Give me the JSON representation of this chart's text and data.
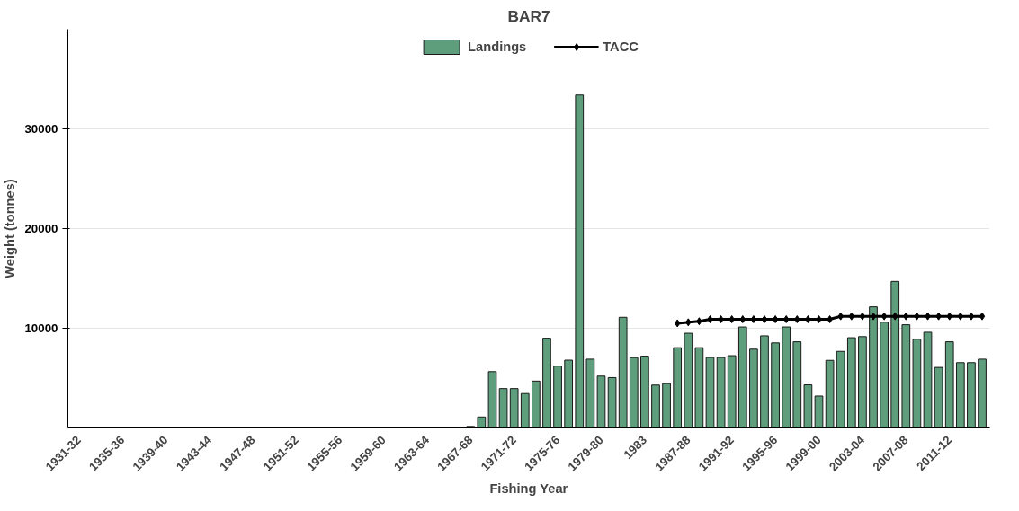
{
  "chart_data": {
    "type": "bar",
    "title": "BAR7",
    "xlabel": "Fishing Year",
    "ylabel": "Weight (tonnes)",
    "categories": [
      "1931-32",
      null,
      null,
      null,
      "1935-36",
      null,
      null,
      null,
      "1939-40",
      null,
      null,
      null,
      "1943-44",
      null,
      null,
      null,
      "1947-48",
      null,
      null,
      null,
      "1951-52",
      null,
      null,
      null,
      "1955-56",
      null,
      null,
      null,
      "1959-60",
      null,
      null,
      null,
      "1963-64",
      null,
      null,
      null,
      "1967-68",
      null,
      null,
      null,
      "1971-72",
      null,
      null,
      null,
      "1975-76",
      null,
      null,
      null,
      "1979-80",
      null,
      null,
      null,
      "1983",
      null,
      null,
      null,
      "1987-88",
      null,
      null,
      null,
      "1991-92",
      null,
      null,
      null,
      "1995-96",
      null,
      null,
      null,
      "1999-00",
      null,
      null,
      null,
      "2003-04",
      null,
      null,
      null,
      "2007-08",
      null,
      null,
      null,
      "2011-12",
      null,
      null,
      null
    ],
    "series": [
      {
        "name": "Landings",
        "color": "#5e9e7c",
        "values": [
          null,
          null,
          null,
          null,
          null,
          null,
          null,
          null,
          null,
          null,
          null,
          null,
          null,
          null,
          null,
          null,
          null,
          null,
          null,
          null,
          null,
          null,
          null,
          null,
          null,
          null,
          null,
          null,
          null,
          null,
          null,
          null,
          null,
          null,
          null,
          null,
          150,
          1100,
          5650,
          3950,
          3950,
          3450,
          4700,
          9000,
          6200,
          6800,
          33400,
          6900,
          5200,
          5050,
          11100,
          7050,
          7200,
          4300,
          4450,
          8050,
          9500,
          8050,
          7070,
          7070,
          7250,
          10130,
          7900,
          9240,
          8530,
          10130,
          8640,
          4320,
          3200,
          6780,
          7680,
          9050,
          9160,
          12150,
          10610,
          14700,
          10350,
          8900,
          9600,
          6070,
          8640,
          6550,
          6550,
          6900
        ]
      },
      {
        "name": "TACC",
        "type": "line",
        "color": "#000000",
        "marker": "diamond",
        "line_style": "solid",
        "values": [
          null,
          null,
          null,
          null,
          null,
          null,
          null,
          null,
          null,
          null,
          null,
          null,
          null,
          null,
          null,
          null,
          null,
          null,
          null,
          null,
          null,
          null,
          null,
          null,
          null,
          null,
          null,
          null,
          null,
          null,
          null,
          null,
          null,
          null,
          null,
          null,
          null,
          null,
          null,
          null,
          null,
          null,
          null,
          null,
          null,
          null,
          null,
          null,
          null,
          null,
          null,
          null,
          null,
          null,
          null,
          10500,
          10600,
          10700,
          10900,
          10900,
          10900,
          10900,
          10900,
          10900,
          10900,
          10900,
          10900,
          10900,
          10900,
          10900,
          11200,
          11200,
          11200,
          11200,
          11200,
          11200,
          11200,
          11200,
          11200,
          11200,
          11200,
          11200,
          11200,
          11200
        ]
      }
    ],
    "ylim": [
      0,
      40000
    ],
    "yticks": [
      10000,
      20000,
      30000
    ],
    "grid": "y",
    "legend": "top"
  }
}
